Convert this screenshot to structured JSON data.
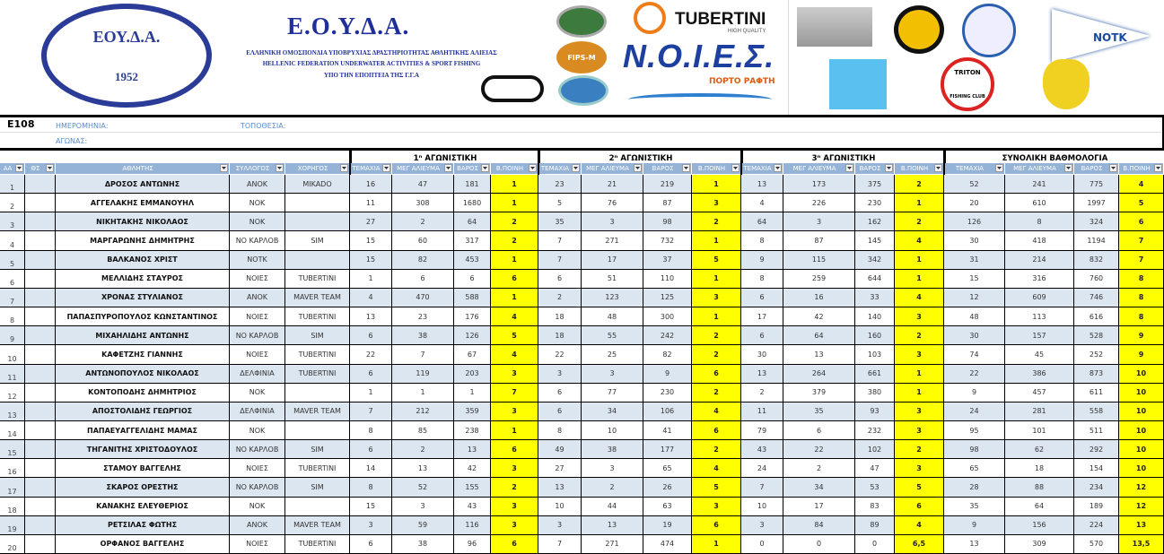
{
  "banner": {
    "seal_text": "ΕΟΥ.Δ.Α.",
    "seal_year": "1952",
    "federation_title": "Ε.Ο.Υ.Δ.Α.",
    "federation_line1": "ΕΛΛΗΝΙΚΗ ΟΜΟΣΠΟΝΔΙΑ ΥΠΟΒΡΥΧΙΑΣ ΔΡΑΣΤΗΡΙΟΤΗΤΑΣ ΑΘΛΗΤΙΚΗΣ ΑΛΙΕΙΑΣ",
    "federation_line2": "HELLENIC FEDERATION UNDERWATER ACTIVITIES & SPORT FISHING",
    "federation_line3": "ΥΠΟ ΤΗΝ ΕΠΟΠΤΕΙΑ ΤΗΣ Γ.Γ.Α",
    "fips_label": "FIPS-M",
    "tubertini": "TUBERTINI",
    "tubertini_tag": "HIGH QUALITY",
    "noies": "Ν.Ο.Ι.Ε.Σ.",
    "noies_place": "ΠΟΡΤΟ ΡΑΦΤΗ",
    "notk": "NOTK",
    "triton": "TRITON",
    "triton_sub": "FISHING CLUB"
  },
  "sheet": {
    "code": "E108",
    "date_label": "ΗΜΕΡΟΜΗΝΙΑ:",
    "place_label": "ΤΟΠΟΘΕΣΙΑ:",
    "event_label": "ΑΓΩΝΑΣ:",
    "groups": [
      "1ⁿ ΑΓΩΝΙΣΤΙΚΗ",
      "2ⁿ ΑΓΩΝΙΣΤΙΚΗ",
      "3ⁿ ΑΓΩΝΙΣΤΙΚΗ",
      "ΣΥΝΟΛΙΚΗ ΒΑΘΜΟΛΟΓΙΑ"
    ],
    "columns": [
      "ΑΑ",
      "ΘΣ",
      "ΑΘΛΗΤΗΣ",
      "ΣΥΛΛΟΓΟΣ",
      "ΧΟΡΗΓΟΣ",
      "ΤΕΜΑΧΙΑ",
      "ΜΕΓ ΑΛΙΕΥΜΑ",
      "ΒΑΡΟΣ",
      "Β.ΠΟΙΝΗ",
      "ΤΕΜΑΧΙΑ",
      "ΜΕΓ ΑΛΙΕΥΜΑ",
      "ΒΑΡΟΣ",
      "Β.ΠΟΙΝΗ",
      "ΤΕΜΑΧΙΑ",
      "ΜΕΓ ΑΛΙΕΥΜΑ",
      "ΒΑΡΟΣ",
      "Β.ΠΟΙΝΗ",
      "ΤΕΜΑΧΙΑ",
      "ΜΕΓ ΑΛΙΕΥΜΑ",
      "ΒΑΡΟΣ",
      "Β.ΠΟΙΝΗ"
    ],
    "rows": [
      [
        "1",
        "",
        "ΔΡΟΣΟΣ ΑΝΤΩΝΗΣ",
        "ΑΝΟΚ",
        "MIKADO",
        "16",
        "47",
        "181",
        "1",
        "23",
        "21",
        "219",
        "1",
        "13",
        "173",
        "375",
        "2",
        "52",
        "241",
        "775",
        "4"
      ],
      [
        "2",
        "",
        "ΑΓΓΕΛΑΚΗΣ ΕΜΜΑΝΟΥΗΛ",
        "ΝΟΚ",
        "",
        "11",
        "308",
        "1680",
        "1",
        "5",
        "76",
        "87",
        "3",
        "4",
        "226",
        "230",
        "1",
        "20",
        "610",
        "1997",
        "5"
      ],
      [
        "3",
        "",
        "ΝΙΚΗΤΑΚΗΣ ΝΙΚΟΛΑΟΣ",
        "ΝΟΚ",
        "",
        "27",
        "2",
        "64",
        "2",
        "35",
        "3",
        "98",
        "2",
        "64",
        "3",
        "162",
        "2",
        "126",
        "8",
        "324",
        "6"
      ],
      [
        "4",
        "",
        "ΜΑΡΓΑΡΩΝΗΣ ΔΗΜΗΤΡΗΣ",
        "ΝΟ ΚΑΡΛΟΒ",
        "SIM",
        "15",
        "60",
        "317",
        "2",
        "7",
        "271",
        "732",
        "1",
        "8",
        "87",
        "145",
        "4",
        "30",
        "418",
        "1194",
        "7"
      ],
      [
        "5",
        "",
        "ΒΑΛΚΑΝΟΣ ΧΡΙΣΤ",
        "ΝΟΤΚ",
        "",
        "15",
        "82",
        "453",
        "1",
        "7",
        "17",
        "37",
        "5",
        "9",
        "115",
        "342",
        "1",
        "31",
        "214",
        "832",
        "7"
      ],
      [
        "6",
        "",
        "ΜΕΛΛΙΔΗΣ ΣΤΑΥΡΟΣ",
        "ΝΟΙΕΣ",
        "TUBERTINI",
        "1",
        "6",
        "6",
        "6",
        "6",
        "51",
        "110",
        "1",
        "8",
        "259",
        "644",
        "1",
        "15",
        "316",
        "760",
        "8"
      ],
      [
        "7",
        "",
        "ΧΡΟΝΑΣ ΣΤΥΛΙΑΝΟΣ",
        "ΑΝΟΚ",
        "MAVER TEAM",
        "4",
        "470",
        "588",
        "1",
        "2",
        "123",
        "125",
        "3",
        "6",
        "16",
        "33",
        "4",
        "12",
        "609",
        "746",
        "8"
      ],
      [
        "8",
        "",
        "ΠΑΠΑΣΠΥΡΟΠΟΥΛΟΣ ΚΩΝΣΤΑΝΤΙΝΟΣ",
        "ΝΟΙΕΣ",
        "TUBERTINI",
        "13",
        "23",
        "176",
        "4",
        "18",
        "48",
        "300",
        "1",
        "17",
        "42",
        "140",
        "3",
        "48",
        "113",
        "616",
        "8"
      ],
      [
        "9",
        "",
        "ΜΙΧΑΗΛΙΔΗΣ ΑΝΤΩΝΗΣ",
        "ΝΟ ΚΑΡΛΟΒ",
        "SIM",
        "6",
        "38",
        "126",
        "5",
        "18",
        "55",
        "242",
        "2",
        "6",
        "64",
        "160",
        "2",
        "30",
        "157",
        "528",
        "9"
      ],
      [
        "10",
        "",
        "ΚΑΦΕΤΖΗΣ ΓΙΑΝΝΗΣ",
        "ΝΟΙΕΣ",
        "TUBERTINI",
        "22",
        "7",
        "67",
        "4",
        "22",
        "25",
        "82",
        "2",
        "30",
        "13",
        "103",
        "3",
        "74",
        "45",
        "252",
        "9"
      ],
      [
        "11",
        "",
        "ΑΝΤΩΝΟΠΟΥΛΟΣ ΝΙΚΟΛΑΟΣ",
        "ΔΕΛΦΙΝΙΑ",
        "TUBERTINI",
        "6",
        "119",
        "203",
        "3",
        "3",
        "3",
        "9",
        "6",
        "13",
        "264",
        "661",
        "1",
        "22",
        "386",
        "873",
        "10"
      ],
      [
        "12",
        "",
        "ΚΟΝΤΟΠΟΔΗΣ ΔΗΜΗΤΡΙΟΣ",
        "ΝΟΚ",
        "",
        "1",
        "1",
        "1",
        "7",
        "6",
        "77",
        "230",
        "2",
        "2",
        "379",
        "380",
        "1",
        "9",
        "457",
        "611",
        "10"
      ],
      [
        "13",
        "",
        "ΑΠΟΣΤΟΛΙΔΗΣ ΓΕΩΡΓΙΟΣ",
        "ΔΕΛΦΙΝΙΑ",
        "MAVER TEAM",
        "7",
        "212",
        "359",
        "3",
        "6",
        "34",
        "106",
        "4",
        "11",
        "35",
        "93",
        "3",
        "24",
        "281",
        "558",
        "10"
      ],
      [
        "14",
        "",
        "ΠΑΠΑΕΥΑΓΓΕΛΙΔΗΣ ΜΑΜΑΣ",
        "ΝΟΚ",
        "",
        "8",
        "85",
        "238",
        "1",
        "8",
        "10",
        "41",
        "6",
        "79",
        "6",
        "232",
        "3",
        "95",
        "101",
        "511",
        "10"
      ],
      [
        "15",
        "",
        "ΤΗΓΑΝΙΤΗΣ ΧΡΙΣΤΟΔΟΥΛΟΣ",
        "ΝΟ ΚΑΡΛΟΒ",
        "SIM",
        "6",
        "2",
        "13",
        "6",
        "49",
        "38",
        "177",
        "2",
        "43",
        "22",
        "102",
        "2",
        "98",
        "62",
        "292",
        "10"
      ],
      [
        "16",
        "",
        "ΣΤΑΜΟΥ ΒΑΓΓΕΛΗΣ",
        "ΝΟΙΕΣ",
        "TUBERTINI",
        "14",
        "13",
        "42",
        "3",
        "27",
        "3",
        "65",
        "4",
        "24",
        "2",
        "47",
        "3",
        "65",
        "18",
        "154",
        "10"
      ],
      [
        "17",
        "",
        "ΣΚΑΡΟΣ ΟΡΕΣΤΗΣ",
        "ΝΟ ΚΑΡΛΟΒ",
        "SIM",
        "8",
        "52",
        "155",
        "2",
        "13",
        "2",
        "26",
        "5",
        "7",
        "34",
        "53",
        "5",
        "28",
        "88",
        "234",
        "12"
      ],
      [
        "18",
        "",
        "ΚΑΝΑΚΗΣ ΕΛΕΥΘΕΡΙΟΣ",
        "ΝΟΚ",
        "",
        "15",
        "3",
        "43",
        "3",
        "10",
        "44",
        "63",
        "3",
        "10",
        "17",
        "83",
        "6",
        "35",
        "64",
        "189",
        "12"
      ],
      [
        "19",
        "",
        "ΡΕΤΣΙΛΑΣ ΦΩΤΗΣ",
        "ΑΝΟΚ",
        "MAVER TEAM",
        "3",
        "59",
        "116",
        "3",
        "3",
        "13",
        "19",
        "6",
        "3",
        "84",
        "89",
        "4",
        "9",
        "156",
        "224",
        "13"
      ],
      [
        "20",
        "",
        "ΟΡΦΑΝΟΣ ΒΑΓΓΕΛΗΣ",
        "ΝΟΙΕΣ",
        "TUBERTINI",
        "6",
        "38",
        "96",
        "6",
        "7",
        "271",
        "474",
        "1",
        "0",
        "0",
        "0",
        "6,5",
        "13",
        "309",
        "570",
        "13,5"
      ]
    ]
  },
  "colors": {
    "header_bg": "#95b3d7",
    "band": "#dce6f1",
    "penalty": "#ffff00",
    "brand_blue": "#1f2f9a"
  }
}
